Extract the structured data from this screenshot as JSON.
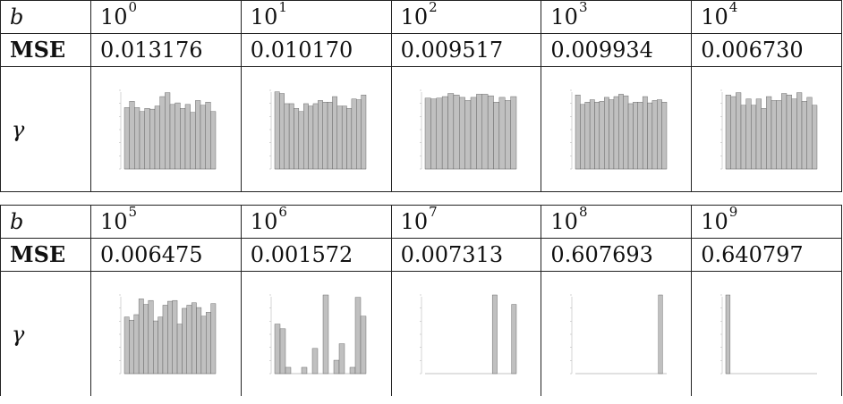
{
  "colors": {
    "bar_fill": "#c0c0c0",
    "bar_stroke": "#555555",
    "border": "#222222"
  },
  "row_labels": {
    "b": "b",
    "mse": "MSE",
    "gamma": "γ"
  },
  "tables": [
    {
      "columns": [
        {
          "b_base": "10",
          "b_exp": "0",
          "mse": "0.013176"
        },
        {
          "b_base": "10",
          "b_exp": "1",
          "mse": "0.010170"
        },
        {
          "b_base": "10",
          "b_exp": "2",
          "mse": "0.009517"
        },
        {
          "b_base": "10",
          "b_exp": "3",
          "mse": "0.009934"
        },
        {
          "b_base": "10",
          "b_exp": "4",
          "mse": "0.006730"
        }
      ]
    },
    {
      "columns": [
        {
          "b_base": "10",
          "b_exp": "5",
          "mse": "0.006475"
        },
        {
          "b_base": "10",
          "b_exp": "6",
          "mse": "0.001572"
        },
        {
          "b_base": "10",
          "b_exp": "7",
          "mse": "0.007313"
        },
        {
          "b_base": "10",
          "b_exp": "8",
          "mse": "0.607693"
        },
        {
          "b_base": "10",
          "b_exp": "9",
          "mse": "0.640797"
        }
      ]
    }
  ],
  "chart_data": [
    {
      "type": "bar",
      "values": [
        0.78,
        0.86,
        0.78,
        0.73,
        0.77,
        0.76,
        0.8,
        0.92,
        0.97,
        0.82,
        0.84,
        0.77,
        0.82,
        0.72,
        0.87,
        0.81,
        0.85,
        0.73
      ]
    },
    {
      "type": "bar",
      "values": [
        0.98,
        0.96,
        0.83,
        0.83,
        0.77,
        0.73,
        0.83,
        0.8,
        0.83,
        0.87,
        0.85,
        0.85,
        0.92,
        0.8,
        0.8,
        0.77,
        0.89,
        0.88,
        0.94
      ]
    },
    {
      "type": "bar",
      "values": [
        0.9,
        0.89,
        0.9,
        0.92,
        0.96,
        0.94,
        0.91,
        0.87,
        0.91,
        0.95,
        0.95,
        0.93,
        0.85,
        0.91,
        0.87,
        0.92
      ]
    },
    {
      "type": "bar",
      "values": [
        0.94,
        0.82,
        0.85,
        0.88,
        0.85,
        0.86,
        0.91,
        0.88,
        0.92,
        0.95,
        0.93,
        0.83,
        0.85,
        0.85,
        0.92,
        0.84,
        0.87,
        0.88,
        0.85
      ]
    },
    {
      "type": "bar",
      "values": [
        0.94,
        0.92,
        0.97,
        0.81,
        0.89,
        0.81,
        0.89,
        0.77,
        0.92,
        0.87,
        0.87,
        0.96,
        0.94,
        0.89,
        0.97,
        0.86,
        0.91,
        0.81
      ]
    },
    {
      "type": "bar",
      "values": [
        0.72,
        0.68,
        0.75,
        0.95,
        0.88,
        0.93,
        0.67,
        0.72,
        0.87,
        0.92,
        0.93,
        0.63,
        0.83,
        0.87,
        0.9,
        0.84,
        0.73,
        0.78,
        0.89
      ]
    },
    {
      "type": "bar",
      "values": [
        0.63,
        0.57,
        0.08,
        0,
        0,
        0.08,
        0,
        0.32,
        0,
        1.0,
        0,
        0.17,
        0.38,
        0,
        0.08,
        0.97,
        0.73
      ]
    },
    {
      "type": "bar",
      "values": [
        0,
        0,
        0,
        0,
        0,
        0,
        0,
        0,
        0,
        0,
        0,
        0,
        0,
        0,
        1.0,
        0,
        0,
        0,
        0.88
      ]
    },
    {
      "type": "bar",
      "values": [
        0,
        0,
        0,
        0,
        0,
        0,
        0,
        0,
        0,
        0,
        0,
        0,
        0,
        0,
        0,
        0,
        0,
        0,
        0,
        0,
        1.0,
        0
      ]
    },
    {
      "type": "bar",
      "values": [
        1.0,
        0,
        0,
        0,
        0,
        0,
        0,
        0,
        0,
        0,
        0,
        0,
        0,
        0,
        0,
        0,
        0,
        0,
        0,
        0,
        0
      ]
    }
  ]
}
